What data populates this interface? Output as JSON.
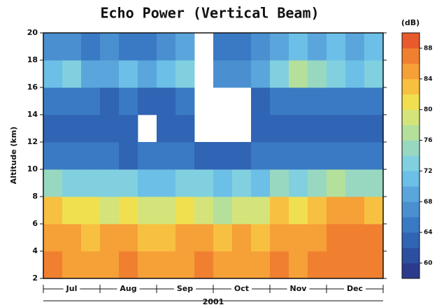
{
  "chart_data": {
    "type": "heatmap",
    "title": "Echo Power (Vertical Beam)",
    "y_label": "Altitude (km)",
    "ylim": [
      2,
      20
    ],
    "yticks": [
      2,
      4,
      6,
      8,
      10,
      12,
      14,
      16,
      18,
      20
    ],
    "months": [
      "Jul",
      "Aug",
      "Sep",
      "Oct",
      "Nov",
      "Dec"
    ],
    "x_label": "2001",
    "y_bins": [
      2,
      4,
      6,
      8,
      10,
      12,
      14,
      16,
      18,
      20
    ],
    "z": [
      [
        86,
        85,
        84,
        85,
        86,
        85,
        84,
        85,
        86,
        85,
        84,
        85,
        86,
        85,
        86,
        87,
        86,
        87
      ],
      [
        85,
        84,
        83,
        84,
        84,
        83,
        83,
        84,
        84,
        82,
        84,
        83,
        85,
        84,
        85,
        86,
        86,
        86
      ],
      [
        82,
        80,
        81,
        78,
        80,
        79,
        78,
        80,
        79,
        76,
        79,
        78,
        82,
        81,
        82,
        84,
        84,
        83
      ],
      [
        74,
        72,
        73,
        72,
        73,
        71,
        71,
        73,
        72,
        70,
        72,
        71,
        74,
        73,
        74,
        76,
        75,
        74
      ],
      [
        65,
        64,
        65,
        64,
        63,
        64,
        64,
        65,
        63,
        62,
        63,
        64,
        64,
        65,
        64,
        65,
        64,
        65
      ],
      [
        63,
        62,
        62,
        63,
        62,
        null,
        62,
        63,
        null,
        null,
        null,
        62,
        63,
        62,
        63,
        62,
        63,
        62
      ],
      [
        64,
        65,
        64,
        63,
        64,
        63,
        63,
        64,
        null,
        null,
        null,
        63,
        65,
        64,
        64,
        65,
        64,
        65
      ],
      [
        70,
        72,
        68,
        69,
        70,
        68,
        70,
        72,
        null,
        66,
        67,
        69,
        73,
        76,
        74,
        72,
        71,
        73
      ],
      [
        67,
        66,
        65,
        66,
        64,
        65,
        66,
        68,
        null,
        64,
        65,
        66,
        68,
        70,
        69,
        70,
        68,
        70
      ]
    ],
    "colorbar": {
      "label": "(dB)",
      "lim": [
        58,
        90
      ],
      "ticks": [
        60,
        64,
        68,
        72,
        76,
        80,
        84,
        88
      ],
      "colors": [
        "#2c3a8c",
        "#2d4fa0",
        "#3064b4",
        "#3a7ac4",
        "#4a90d0",
        "#5aa6dc",
        "#6cbfe6",
        "#80d0e0",
        "#98d8c0",
        "#b4e09c",
        "#d4e47a",
        "#f0e050",
        "#f8c040",
        "#f6a038",
        "#f08030",
        "#e85a2c"
      ]
    }
  }
}
